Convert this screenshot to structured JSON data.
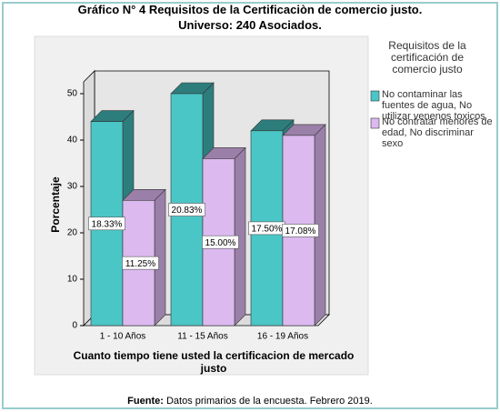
{
  "chart_data": {
    "type": "bar3d",
    "title": "Gráfico N° 4 Requisitos de la Certificaciòn de comercio justo.",
    "subtitle": "Universo: 240 Asociados.",
    "y_label": "Porcentaje",
    "x_label": "Cuanto tiempo tiene usted la certificacion de mercado justo",
    "legend_title": "Requisitos de la certificación de comercio justo",
    "categories": [
      "1 - 10 Años",
      "11 - 15 Años",
      "16 - 19 Años"
    ],
    "series": [
      {
        "name": "No contaminar las fuentes de agua, No utilizar venenos toxicos",
        "color": "#4ac6c6",
        "top_color": "#2e7d7d",
        "values": [
          44,
          50,
          42
        ],
        "share_labels": [
          "18.33%",
          "20.83%",
          "17.50%"
        ]
      },
      {
        "name": "No contratar menores de edad, No discriminar sexo",
        "color": "#dcbaf0",
        "top_color": "#9a80a8",
        "values": [
          27,
          36,
          41
        ],
        "share_labels": [
          "11.25%",
          "15.00%",
          "17.08%"
        ]
      }
    ],
    "ylim": [
      0,
      50
    ],
    "yticks": [
      0,
      10,
      20,
      30,
      40,
      50
    ],
    "source_label": "Fuente:",
    "source": "Datos primarios de la encuesta. Febrero 2019."
  }
}
